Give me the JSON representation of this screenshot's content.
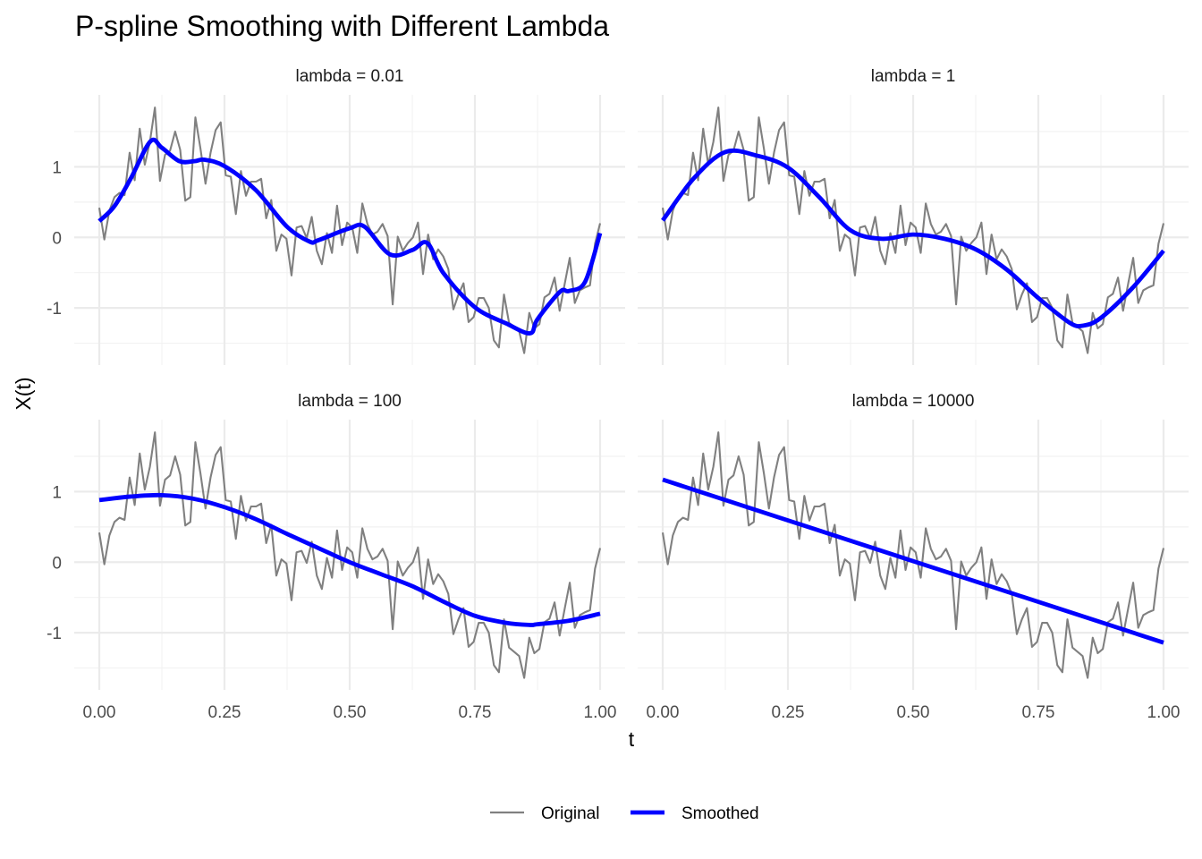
{
  "chart_data": {
    "type": "line",
    "title": "P-spline Smoothing with Different Lambda",
    "xlabel": "t",
    "ylabel": "X(t)",
    "xlim": [
      -0.05,
      1.05
    ],
    "ylim": [
      -1.81,
      2.02
    ],
    "x_ticks": [
      0,
      0.25,
      0.5,
      0.75,
      1.0
    ],
    "x_tick_labels": [
      "0.00",
      "0.25",
      "0.50",
      "0.75",
      "1.00"
    ],
    "y_ticks": [
      -1,
      0,
      1
    ],
    "y_tick_labels": [
      "-1",
      "0",
      "1"
    ],
    "grid": true,
    "facet_layout": "2x2",
    "legend": {
      "position": "bottom",
      "entries": [
        {
          "label": "Original",
          "color": "#808080"
        },
        {
          "label": "Smoothed",
          "color": "#0000ff"
        }
      ]
    },
    "original": {
      "name": "Original",
      "x_description": "100 equally spaced points t = k/99, k = 0..99",
      "values": [
        0.42,
        -0.03,
        0.38,
        0.57,
        0.63,
        0.6,
        1.2,
        0.81,
        1.54,
        1.03,
        1.35,
        1.84,
        0.8,
        1.17,
        1.23,
        1.5,
        1.24,
        0.52,
        0.57,
        1.7,
        1.26,
        0.76,
        1.2,
        1.52,
        1.63,
        0.88,
        0.86,
        0.33,
        0.94,
        0.59,
        0.79,
        0.79,
        0.83,
        0.27,
        0.53,
        -0.19,
        0.04,
        -0.02,
        -0.54,
        0.14,
        0.16,
        -0.01,
        0.29,
        -0.19,
        -0.38,
        0.06,
        -0.22,
        0.45,
        -0.11,
        0.21,
        0.14,
        -0.22,
        0.48,
        0.19,
        0.04,
        0.08,
        0.19,
        0.02,
        -0.95,
        0.01,
        -0.19,
        -0.08,
        0.0,
        0.21,
        -0.52,
        0.04,
        -0.31,
        -0.17,
        -0.27,
        -0.45,
        -1.02,
        -0.81,
        -0.65,
        -1.2,
        -1.13,
        -0.86,
        -0.86,
        -1.0,
        -1.46,
        -1.56,
        -0.81,
        -1.21,
        -1.27,
        -1.33,
        -1.64,
        -1.07,
        -1.29,
        -1.23,
        -0.85,
        -0.8,
        -0.57,
        -1.04,
        -0.66,
        -0.29,
        -0.93,
        -0.75,
        -0.71,
        -0.68,
        -0.09,
        0.2
      ]
    },
    "panels": [
      {
        "label": "lambda = 0.01",
        "smoothed": {
          "x": [
            0,
            0.03,
            0.0625,
            0.102,
            0.125,
            0.16,
            0.19,
            0.21,
            0.25,
            0.3125,
            0.375,
            0.42,
            0.4375,
            0.5,
            0.53,
            0.58,
            0.625,
            0.655,
            0.6875,
            0.75,
            0.8125,
            0.86,
            0.875,
            0.92,
            0.9375,
            0.97,
            1.0
          ],
          "y": [
            0.23,
            0.44,
            0.83,
            1.36,
            1.27,
            1.08,
            1.08,
            1.1,
            1.01,
            0.67,
            0.15,
            -0.06,
            -0.04,
            0.13,
            0.15,
            -0.24,
            -0.18,
            -0.08,
            -0.51,
            -0.99,
            -1.22,
            -1.36,
            -1.16,
            -0.77,
            -0.76,
            -0.63,
            0.06
          ]
        }
      },
      {
        "label": "lambda = 1",
        "smoothed": {
          "x": [
            0,
            0.0625,
            0.125,
            0.1875,
            0.25,
            0.3125,
            0.375,
            0.4375,
            0.5,
            0.5625,
            0.625,
            0.6875,
            0.75,
            0.8125,
            0.84,
            0.875,
            0.9375,
            1.0
          ],
          "y": [
            0.24,
            0.84,
            1.21,
            1.16,
            0.99,
            0.57,
            0.1,
            -0.02,
            0.04,
            -0.02,
            -0.17,
            -0.46,
            -0.86,
            -1.21,
            -1.25,
            -1.14,
            -0.72,
            -0.19
          ]
        }
      },
      {
        "label": "lambda = 100",
        "smoothed": {
          "x": [
            0,
            0.0625,
            0.125,
            0.1875,
            0.25,
            0.3125,
            0.375,
            0.4375,
            0.5,
            0.5625,
            0.625,
            0.6875,
            0.75,
            0.8125,
            0.86,
            0.875,
            0.9375,
            1.0
          ],
          "y": [
            0.88,
            0.93,
            0.95,
            0.9,
            0.78,
            0.61,
            0.4,
            0.2,
            0.0,
            -0.17,
            -0.34,
            -0.56,
            -0.76,
            -0.86,
            -0.89,
            -0.88,
            -0.83,
            -0.73
          ]
        }
      },
      {
        "label": "lambda = 10000",
        "smoothed": {
          "x": [
            0,
            1.0
          ],
          "y": [
            1.17,
            -1.14
          ]
        }
      }
    ]
  }
}
